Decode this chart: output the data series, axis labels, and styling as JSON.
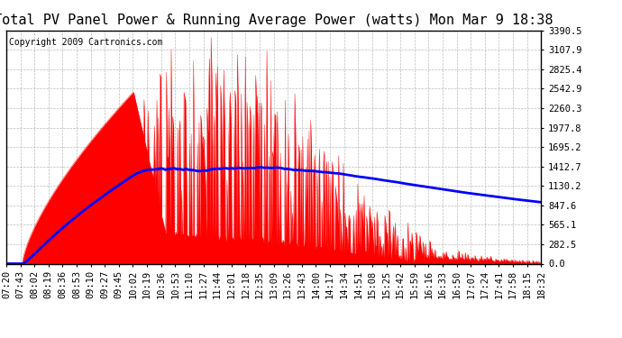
{
  "title": "Total PV Panel Power & Running Average Power (watts) Mon Mar 9 18:38",
  "copyright": "Copyright 2009 Cartronics.com",
  "ylabel_right": [
    "3390.5",
    "3107.9",
    "2825.4",
    "2542.9",
    "2260.3",
    "1977.8",
    "1695.2",
    "1412.7",
    "1130.2",
    "847.6",
    "565.1",
    "282.5",
    "0.0"
  ],
  "ymax": 3390.5,
  "ymin": 0.0,
  "xtick_labels": [
    "07:20",
    "07:43",
    "08:02",
    "08:19",
    "08:36",
    "08:53",
    "09:10",
    "09:27",
    "09:45",
    "10:02",
    "10:19",
    "10:36",
    "10:53",
    "11:10",
    "11:27",
    "11:44",
    "12:01",
    "12:18",
    "12:35",
    "13:09",
    "13:26",
    "13:43",
    "14:00",
    "14:17",
    "14:34",
    "14:51",
    "15:08",
    "15:25",
    "15:42",
    "15:59",
    "16:16",
    "16:33",
    "16:50",
    "17:07",
    "17:24",
    "17:41",
    "17:58",
    "18:15",
    "18:32"
  ],
  "background_color": "#ffffff",
  "plot_bg_color": "#ffffff",
  "grid_color": "#aaaaaa",
  "red_color": "#ff0000",
  "blue_color": "#0000ff",
  "title_fontsize": 11,
  "copyright_fontsize": 7,
  "tick_fontsize": 7.5
}
